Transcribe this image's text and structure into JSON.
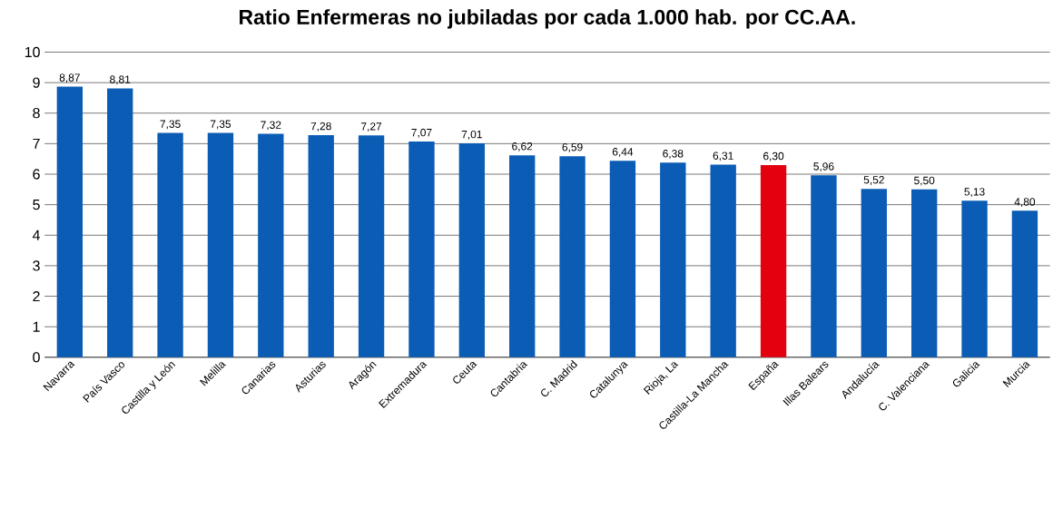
{
  "chart_data": {
    "type": "bar",
    "title": "Ratio Enfermeras no jubiladas por cada 1.000 hab. por CC.AA.",
    "categories": [
      "Navarra",
      "País Vasco",
      "Castilla y León",
      "Melilla",
      "Canarias",
      "Asturias",
      "Aragón",
      "Extremadura",
      "Ceuta",
      "Cantabria",
      "C. Madrid",
      "Catalunya",
      "Rioja, La",
      "Castilla-La Mancha",
      "España",
      "Illas Balears",
      "Andalucía",
      "C. Valenciana",
      "Galicia",
      "Murcia"
    ],
    "values": [
      8.87,
      8.81,
      7.35,
      7.35,
      7.32,
      7.28,
      7.27,
      7.07,
      7.01,
      6.62,
      6.59,
      6.44,
      6.38,
      6.31,
      6.3,
      5.96,
      5.52,
      5.5,
      5.13,
      4.8
    ],
    "value_labels": [
      "8,87",
      "8,81",
      "7,35",
      "7,35",
      "7,32",
      "7,28",
      "7,27",
      "7,07",
      "7,01",
      "6,62",
      "6,59",
      "6,44",
      "6,38",
      "6,31",
      "6,30",
      "5,96",
      "5,52",
      "5,50",
      "5,13",
      "4,80"
    ],
    "colors": [
      "#0a5cb4",
      "#0a5cb4",
      "#0a5cb4",
      "#0a5cb4",
      "#0a5cb4",
      "#0a5cb4",
      "#0a5cb4",
      "#0a5cb4",
      "#0a5cb4",
      "#0a5cb4",
      "#0a5cb4",
      "#0a5cb4",
      "#0a5cb4",
      "#0a5cb4",
      "#e3000f",
      "#0a5cb4",
      "#0a5cb4",
      "#0a5cb4",
      "#0a5cb4",
      "#0a5cb4"
    ],
    "ylim": [
      0,
      10
    ],
    "yticks": [
      0,
      1,
      2,
      3,
      4,
      5,
      6,
      7,
      8,
      9,
      10
    ],
    "grid": "y"
  }
}
